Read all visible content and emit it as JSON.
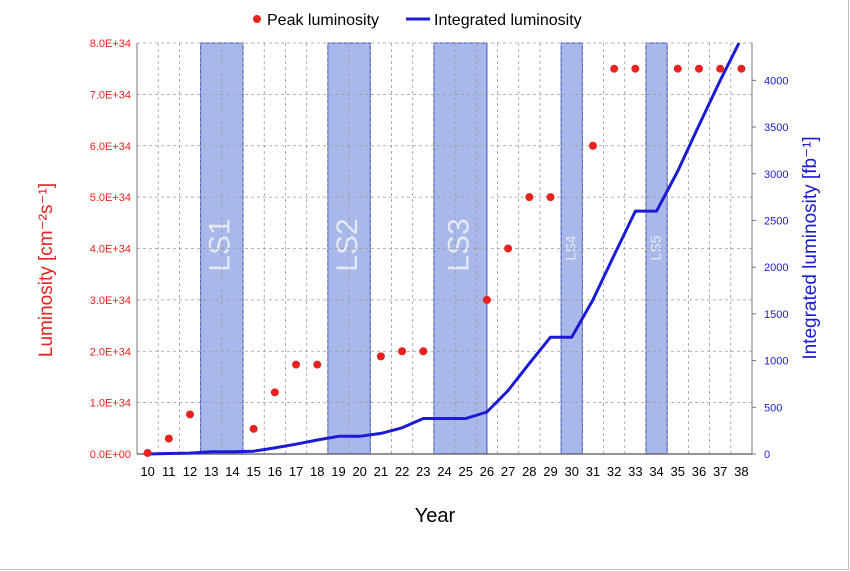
{
  "chart_data": {
    "type": "scatter+line",
    "title": "",
    "xlabel": "Year",
    "ylabel_left": "Luminosity [cm⁻²s⁻¹]",
    "ylabel_right": "Integrated luminosity [fb⁻¹]",
    "x": [
      10,
      11,
      12,
      13,
      14,
      15,
      16,
      17,
      18,
      19,
      20,
      21,
      22,
      23,
      24,
      25,
      26,
      27,
      28,
      29,
      30,
      31,
      32,
      33,
      34,
      35,
      36,
      37,
      38
    ],
    "ylim_left": [
      0,
      8e+34
    ],
    "ylim_right": [
      0,
      4400
    ],
    "left_ticks": [
      "0.0E+00",
      "1.0E+34",
      "2.0E+34",
      "3.0E+34",
      "4.0E+34",
      "5.0E+34",
      "6.0E+34",
      "7.0E+34",
      "8.0E+34"
    ],
    "right_ticks": [
      "0",
      "500",
      "1000",
      "1500",
      "2000",
      "2500",
      "3000",
      "3500",
      "4000"
    ],
    "grid": true,
    "legend_position": "top",
    "series": [
      {
        "name": "Peak luminosity",
        "kind": "scatter",
        "axis": "left",
        "color": "#e8231f",
        "points": [
          [
            10,
            0.02
          ],
          [
            11,
            0.3
          ],
          [
            12,
            0.77
          ],
          [
            15,
            0.49
          ],
          [
            16,
            1.2
          ],
          [
            17,
            1.74
          ],
          [
            18,
            1.74
          ],
          [
            21,
            1.9
          ],
          [
            22,
            2.0
          ],
          [
            23,
            2.0
          ],
          [
            26,
            3.0
          ],
          [
            27,
            4.0
          ],
          [
            28,
            5.0
          ],
          [
            29,
            5.0
          ],
          [
            31,
            6.0
          ],
          [
            32,
            7.5
          ],
          [
            33,
            7.5
          ],
          [
            35,
            7.5
          ],
          [
            36,
            7.5
          ],
          [
            37,
            7.5
          ],
          [
            38,
            7.5
          ]
        ],
        "unit_scale": "1E+34"
      },
      {
        "name": "Integrated luminosity",
        "kind": "line",
        "axis": "right",
        "color": "#1b1bd6",
        "points": [
          [
            10,
            0
          ],
          [
            11,
            5
          ],
          [
            12,
            10
          ],
          [
            13,
            25
          ],
          [
            14,
            25
          ],
          [
            15,
            30
          ],
          [
            16,
            65
          ],
          [
            17,
            105
          ],
          [
            18,
            150
          ],
          [
            19,
            190
          ],
          [
            20,
            190
          ],
          [
            21,
            220
          ],
          [
            22,
            280
          ],
          [
            23,
            380
          ],
          [
            24,
            380
          ],
          [
            25,
            380
          ],
          [
            26,
            450
          ],
          [
            27,
            680
          ],
          [
            28,
            970
          ],
          [
            29,
            1250
          ],
          [
            30,
            1250
          ],
          [
            31,
            1650
          ],
          [
            32,
            2130
          ],
          [
            33,
            2600
          ],
          [
            34,
            2600
          ],
          [
            35,
            3030
          ],
          [
            36,
            3520
          ],
          [
            37,
            4000
          ],
          [
            38,
            4450
          ]
        ]
      }
    ],
    "shutdowns": [
      {
        "label": "LS1",
        "from": 12.5,
        "to": 14.5
      },
      {
        "label": "LS2",
        "from": 18.5,
        "to": 20.5
      },
      {
        "label": "LS3",
        "from": 23.5,
        "to": 26.0
      },
      {
        "label": "LS4",
        "from": 29.5,
        "to": 30.5
      },
      {
        "label": "LS5",
        "from": 33.5,
        "to": 34.5
      }
    ]
  },
  "colors": {
    "left_axis": "#e8231f",
    "right_axis": "#1b1bd6",
    "shutdown_fill": "#a9b8ea",
    "shutdown_stroke": "#3b4fc8",
    "grid": "#9a9a9a"
  }
}
